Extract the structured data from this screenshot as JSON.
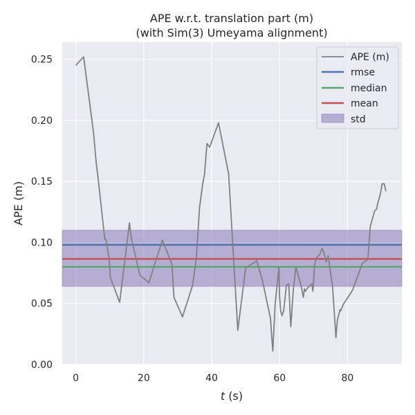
{
  "chart_data": {
    "type": "line",
    "title": "APE w.r.t. translation part (m)",
    "subtitle": "(with Sim(3) Umeyama alignment)",
    "xlabel_var": "t",
    "xlabel_unit": " (s)",
    "ylabel": "APE (m)",
    "xlim": [
      -4,
      96
    ],
    "ylim": [
      0,
      0.264
    ],
    "xticks": [
      0,
      20,
      40,
      60,
      80
    ],
    "yticks": [
      0.0,
      0.05,
      0.1,
      0.15,
      0.2,
      0.25
    ],
    "ytick_labels": [
      "0.00",
      "0.05",
      "0.10",
      "0.15",
      "0.20",
      "0.25"
    ],
    "grid": true,
    "legend_position": "top-right",
    "series": [
      {
        "name": "APE (m)",
        "color": "#808080",
        "x": [
          0,
          2.3,
          5.2,
          6.0,
          6.5,
          8.5,
          8.9,
          9.8,
          10.2,
          12.9,
          15.8,
          16.3,
          18.9,
          21.5,
          25.5,
          28.3,
          28.9,
          31.4,
          34.4,
          35.5,
          36.4,
          37.3,
          37.9,
          38.6,
          39.4,
          42.0,
          45.0,
          47.7,
          50.0,
          53.3,
          55.0,
          57.3,
          58.0,
          58.7,
          59.8,
          60.0,
          60.3,
          60.7,
          61.2,
          62.0,
          62.7,
          63.3,
          64.0,
          64.8,
          66.0,
          66.3,
          67.0,
          67.3,
          67.6,
          68.0,
          68.7,
          69.5,
          69.8,
          70.3,
          71.0,
          71.8,
          72.5,
          73.0,
          73.7,
          74.3,
          75.6,
          76.6,
          77.0,
          77.8,
          78.0,
          78.7,
          81.5,
          84.4,
          86.0,
          86.7,
          87.0,
          88.0,
          88.5,
          89.0,
          89.7,
          90.2,
          90.8,
          91.3
        ],
        "values": [
          0.245,
          0.252,
          0.19,
          0.165,
          0.154,
          0.103,
          0.102,
          0.086,
          0.071,
          0.051,
          0.116,
          0.104,
          0.073,
          0.067,
          0.102,
          0.082,
          0.055,
          0.039,
          0.065,
          0.087,
          0.128,
          0.147,
          0.156,
          0.181,
          0.178,
          0.198,
          0.156,
          0.028,
          0.079,
          0.085,
          0.068,
          0.038,
          0.011,
          0.05,
          0.08,
          0.056,
          0.044,
          0.04,
          0.044,
          0.065,
          0.066,
          0.031,
          0.06,
          0.08,
          0.068,
          0.065,
          0.055,
          0.062,
          0.06,
          0.062,
          0.064,
          0.066,
          0.06,
          0.082,
          0.088,
          0.09,
          0.095,
          0.092,
          0.084,
          0.089,
          0.064,
          0.022,
          0.036,
          0.045,
          0.044,
          0.049,
          0.061,
          0.083,
          0.086,
          0.113,
          0.116,
          0.126,
          0.127,
          0.133,
          0.14,
          0.148,
          0.148,
          0.142
        ]
      }
    ],
    "statistics": [
      {
        "name": "rmse",
        "value": 0.098,
        "color": "#4c72b0"
      },
      {
        "name": "median",
        "value": 0.08,
        "color": "#55a868"
      },
      {
        "name": "mean",
        "value": 0.0865,
        "color": "#c44e52"
      }
    ],
    "std_band": {
      "name": "std",
      "lower": 0.064,
      "upper": 0.11,
      "color": "#8172b2"
    },
    "legend": [
      "APE (m)",
      "rmse",
      "median",
      "mean",
      "std"
    ]
  }
}
